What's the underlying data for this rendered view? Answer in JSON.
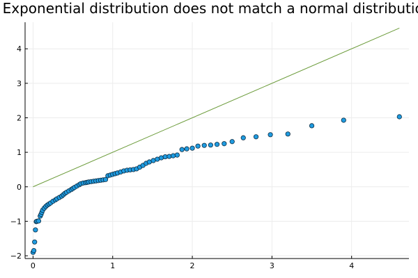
{
  "chart_data": {
    "type": "scatter",
    "title": "Exponential distribution does not match a normal distribution",
    "xlabel": "",
    "ylabel": "",
    "xlim": [
      -0.1,
      4.72
    ],
    "ylim": [
      -2.08,
      4.77
    ],
    "xticks": [
      0,
      1,
      2,
      3,
      4
    ],
    "yticks": [
      -2,
      -1,
      0,
      1,
      2,
      3,
      4
    ],
    "grid": true,
    "legend": "none",
    "colors": {
      "points": "#1f9be0",
      "point_stroke": "#0a2a40",
      "line": "#6b9b3a",
      "grid": "#ececec",
      "axis": "#000000"
    },
    "reference_line": {
      "x": [
        0,
        4.6
      ],
      "y": [
        0,
        4.6
      ]
    },
    "series": [
      {
        "type": "scatter",
        "x": [
          0.0,
          0.01,
          0.02,
          0.03,
          0.04,
          0.05,
          0.07,
          0.09,
          0.1,
          0.11,
          0.12,
          0.14,
          0.16,
          0.18,
          0.2,
          0.22,
          0.25,
          0.28,
          0.3,
          0.33,
          0.36,
          0.38,
          0.4,
          0.42,
          0.45,
          0.48,
          0.5,
          0.52,
          0.55,
          0.58,
          0.6,
          0.63,
          0.66,
          0.68,
          0.7,
          0.73,
          0.76,
          0.79,
          0.82,
          0.85,
          0.88,
          0.91,
          0.94,
          0.97,
          1.0,
          1.03,
          1.06,
          1.1,
          1.14,
          1.18,
          1.22,
          1.26,
          1.3,
          1.34,
          1.38,
          1.42,
          1.46,
          1.51,
          1.56,
          1.61,
          1.66,
          1.71,
          1.76,
          1.81,
          1.87,
          1.93,
          2.0,
          2.07,
          2.15,
          2.23,
          2.31,
          2.4,
          2.5,
          2.64,
          2.8,
          2.98,
          3.2,
          3.5,
          3.9,
          4.6
        ],
        "y": [
          -1.9,
          -1.85,
          -1.6,
          -1.25,
          -1.01,
          -1.0,
          -0.99,
          -0.85,
          -0.8,
          -0.74,
          -0.68,
          -0.62,
          -0.57,
          -0.53,
          -0.5,
          -0.47,
          -0.42,
          -0.38,
          -0.35,
          -0.31,
          -0.27,
          -0.23,
          -0.19,
          -0.16,
          -0.12,
          -0.08,
          -0.05,
          -0.02,
          0.02,
          0.06,
          0.09,
          0.11,
          0.12,
          0.13,
          0.14,
          0.15,
          0.16,
          0.17,
          0.18,
          0.19,
          0.2,
          0.21,
          0.32,
          0.34,
          0.36,
          0.38,
          0.4,
          0.43,
          0.46,
          0.48,
          0.49,
          0.5,
          0.52,
          0.57,
          0.62,
          0.68,
          0.72,
          0.76,
          0.8,
          0.84,
          0.87,
          0.88,
          0.9,
          0.92,
          1.08,
          1.1,
          1.12,
          1.18,
          1.2,
          1.21,
          1.23,
          1.25,
          1.31,
          1.42,
          1.45,
          1.51,
          1.53,
          1.77,
          1.93,
          2.03
        ]
      }
    ]
  }
}
